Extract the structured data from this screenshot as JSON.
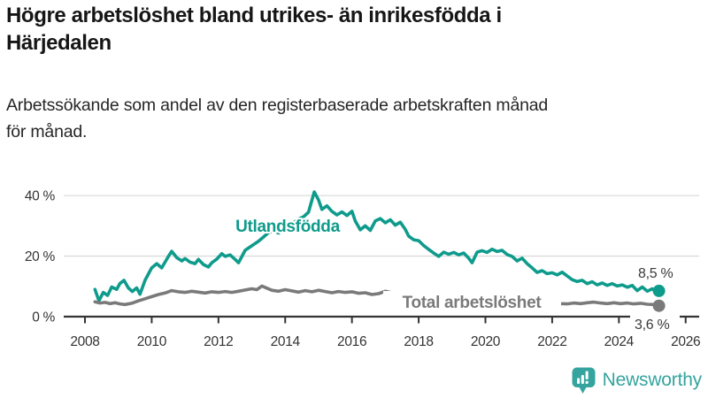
{
  "title": {
    "lines": [
      "Högre arbetslöshet bland utrikes- än inrikesfödda i",
      "Härjedalen"
    ]
  },
  "subtitle": {
    "lines": [
      "Arbetssökande som andel av den registerbaserade arbetskraften månad",
      "för månad."
    ]
  },
  "logo": {
    "text": "Newsworthy",
    "color": "#35a49f"
  },
  "colors": {
    "accent_teal": "#0f9b8c",
    "line_gray": "#7a7a7a",
    "axis": "#333333",
    "gridline": "#dcdcdc"
  },
  "chart_data": {
    "type": "line",
    "title": "Högre arbetslöshet bland utrikes- än inrikesfödda i Härjedalen",
    "subtitle": "Arbetssökande som andel av den registerbaserade arbetskraften månad för månad.",
    "ylabel": "",
    "xlabel": "",
    "ylim": [
      0,
      45
    ],
    "xlim": [
      2007.4,
      2026.4
    ],
    "grid": "horizontal",
    "legend_position": "inline-labels",
    "y_axis": {
      "ticks": [
        {
          "value": 0,
          "label": "0 %"
        },
        {
          "value": 20,
          "label": "20 %"
        },
        {
          "value": 40,
          "label": "40 %"
        }
      ]
    },
    "x_axis": {
      "ticks": [
        {
          "year": 2008,
          "label": "2008"
        },
        {
          "year": 2010,
          "label": "2010"
        },
        {
          "year": 2012,
          "label": "2012"
        },
        {
          "year": 2014,
          "label": "2014"
        },
        {
          "year": 2016,
          "label": "2016"
        },
        {
          "year": 2018,
          "label": "2018"
        },
        {
          "year": 2020,
          "label": "2020"
        },
        {
          "year": 2022,
          "label": "2022"
        },
        {
          "year": 2024,
          "label": "2024"
        },
        {
          "year": 2026,
          "label": "2026"
        }
      ]
    },
    "series": [
      {
        "name": "Utlandsfödda",
        "color": "#0f9b8c",
        "end_label": "8,5 %",
        "end_value": 8.5,
        "points": [
          [
            2008.3,
            9.0
          ],
          [
            2008.42,
            5.2
          ],
          [
            2008.55,
            8.0
          ],
          [
            2008.68,
            7.0
          ],
          [
            2008.8,
            9.8
          ],
          [
            2008.95,
            9.0
          ],
          [
            2009.05,
            11.0
          ],
          [
            2009.17,
            12.0
          ],
          [
            2009.3,
            9.5
          ],
          [
            2009.42,
            8.3
          ],
          [
            2009.55,
            9.5
          ],
          [
            2009.65,
            7.4
          ],
          [
            2009.8,
            12.0
          ],
          [
            2010.0,
            16.1
          ],
          [
            2010.15,
            17.5
          ],
          [
            2010.3,
            16.1
          ],
          [
            2010.5,
            19.9
          ],
          [
            2010.6,
            21.6
          ],
          [
            2010.75,
            19.5
          ],
          [
            2010.9,
            18.4
          ],
          [
            2011.0,
            19.2
          ],
          [
            2011.15,
            18.0
          ],
          [
            2011.3,
            17.5
          ],
          [
            2011.4,
            18.9
          ],
          [
            2011.55,
            17.2
          ],
          [
            2011.7,
            16.4
          ],
          [
            2011.8,
            17.8
          ],
          [
            2011.95,
            19.0
          ],
          [
            2012.1,
            20.8
          ],
          [
            2012.2,
            19.9
          ],
          [
            2012.35,
            20.4
          ],
          [
            2012.5,
            18.9
          ],
          [
            2012.6,
            17.8
          ],
          [
            2012.8,
            21.9
          ],
          [
            2013.0,
            23.4
          ],
          [
            2013.2,
            24.9
          ],
          [
            2013.35,
            26.3
          ],
          [
            2013.5,
            27.8
          ],
          [
            2013.65,
            28.3
          ],
          [
            2013.8,
            27.6
          ],
          [
            2013.95,
            28.8
          ],
          [
            2014.1,
            30.2
          ],
          [
            2014.25,
            31.0
          ],
          [
            2014.4,
            32.2
          ],
          [
            2014.55,
            33.0
          ],
          [
            2014.7,
            34.5
          ],
          [
            2014.87,
            41.2
          ],
          [
            2015.0,
            38.5
          ],
          [
            2015.1,
            35.4
          ],
          [
            2015.25,
            36.6
          ],
          [
            2015.4,
            34.8
          ],
          [
            2015.55,
            33.6
          ],
          [
            2015.7,
            34.6
          ],
          [
            2015.85,
            33.4
          ],
          [
            2016.0,
            34.8
          ],
          [
            2016.1,
            31.6
          ],
          [
            2016.25,
            28.7
          ],
          [
            2016.4,
            30.0
          ],
          [
            2016.55,
            28.5
          ],
          [
            2016.7,
            31.6
          ],
          [
            2016.85,
            32.4
          ],
          [
            2017.0,
            31.0
          ],
          [
            2017.15,
            32.0
          ],
          [
            2017.3,
            30.2
          ],
          [
            2017.45,
            31.2
          ],
          [
            2017.6,
            28.8
          ],
          [
            2017.7,
            26.6
          ],
          [
            2017.85,
            25.4
          ],
          [
            2018.0,
            25.1
          ],
          [
            2018.15,
            23.5
          ],
          [
            2018.3,
            22.2
          ],
          [
            2018.45,
            21.0
          ],
          [
            2018.6,
            19.9
          ],
          [
            2018.75,
            21.3
          ],
          [
            2018.9,
            20.6
          ],
          [
            2019.05,
            21.2
          ],
          [
            2019.2,
            20.4
          ],
          [
            2019.35,
            21.0
          ],
          [
            2019.5,
            19.3
          ],
          [
            2019.6,
            17.8
          ],
          [
            2019.75,
            21.3
          ],
          [
            2019.9,
            21.8
          ],
          [
            2020.05,
            21.2
          ],
          [
            2020.2,
            22.3
          ],
          [
            2020.35,
            21.5
          ],
          [
            2020.5,
            21.9
          ],
          [
            2020.65,
            20.5
          ],
          [
            2020.8,
            19.9
          ],
          [
            2020.95,
            18.4
          ],
          [
            2021.1,
            19.3
          ],
          [
            2021.25,
            17.5
          ],
          [
            2021.4,
            16.1
          ],
          [
            2021.55,
            14.6
          ],
          [
            2021.7,
            15.2
          ],
          [
            2021.85,
            14.2
          ],
          [
            2022.0,
            14.5
          ],
          [
            2022.15,
            13.8
          ],
          [
            2022.3,
            14.7
          ],
          [
            2022.45,
            13.4
          ],
          [
            2022.6,
            12.2
          ],
          [
            2022.75,
            11.6
          ],
          [
            2022.9,
            12.0
          ],
          [
            2023.05,
            10.9
          ],
          [
            2023.2,
            11.5
          ],
          [
            2023.35,
            10.5
          ],
          [
            2023.5,
            11.1
          ],
          [
            2023.65,
            10.3
          ],
          [
            2023.8,
            10.9
          ],
          [
            2023.95,
            10.1
          ],
          [
            2024.1,
            10.5
          ],
          [
            2024.25,
            9.7
          ],
          [
            2024.4,
            10.3
          ],
          [
            2024.55,
            8.6
          ],
          [
            2024.7,
            9.8
          ],
          [
            2024.85,
            8.4
          ],
          [
            2025.0,
            9.2
          ],
          [
            2025.1,
            8.3
          ],
          [
            2025.2,
            8.5
          ]
        ]
      },
      {
        "name": "Total arbetslöshet",
        "color": "#7a7a7a",
        "end_label": "3,6 %",
        "end_value": 3.6,
        "points": [
          [
            2008.3,
            4.9
          ],
          [
            2008.45,
            4.5
          ],
          [
            2008.6,
            4.7
          ],
          [
            2008.75,
            4.3
          ],
          [
            2008.9,
            4.6
          ],
          [
            2009.05,
            4.2
          ],
          [
            2009.2,
            4.0
          ],
          [
            2009.4,
            4.4
          ],
          [
            2009.6,
            5.2
          ],
          [
            2009.8,
            5.9
          ],
          [
            2010.0,
            6.6
          ],
          [
            2010.2,
            7.3
          ],
          [
            2010.4,
            7.8
          ],
          [
            2010.6,
            8.6
          ],
          [
            2010.8,
            8.2
          ],
          [
            2011.0,
            8.0
          ],
          [
            2011.2,
            8.4
          ],
          [
            2011.4,
            8.1
          ],
          [
            2011.6,
            7.8
          ],
          [
            2011.8,
            8.2
          ],
          [
            2012.0,
            8.0
          ],
          [
            2012.2,
            8.3
          ],
          [
            2012.4,
            8.0
          ],
          [
            2012.6,
            8.4
          ],
          [
            2012.8,
            8.8
          ],
          [
            2013.0,
            9.2
          ],
          [
            2013.15,
            8.9
          ],
          [
            2013.3,
            10.1
          ],
          [
            2013.45,
            9.4
          ],
          [
            2013.6,
            8.7
          ],
          [
            2013.8,
            8.4
          ],
          [
            2014.0,
            8.9
          ],
          [
            2014.2,
            8.5
          ],
          [
            2014.4,
            8.1
          ],
          [
            2014.6,
            8.6
          ],
          [
            2014.8,
            8.2
          ],
          [
            2015.0,
            8.7
          ],
          [
            2015.2,
            8.3
          ],
          [
            2015.4,
            7.9
          ],
          [
            2015.6,
            8.3
          ],
          [
            2015.8,
            8.0
          ],
          [
            2016.0,
            8.2
          ],
          [
            2016.2,
            7.7
          ],
          [
            2016.4,
            7.9
          ],
          [
            2016.6,
            7.3
          ],
          [
            2016.8,
            7.6
          ],
          [
            2017.0,
            8.4
          ],
          [
            2017.2,
            7.9
          ],
          [
            2017.5,
            7.3
          ],
          [
            2017.8,
            6.9
          ],
          [
            2018.1,
            6.5
          ],
          [
            2018.5,
            6.1
          ],
          [
            2019.0,
            5.6
          ],
          [
            2019.5,
            5.3
          ],
          [
            2020.0,
            5.6
          ],
          [
            2020.4,
            6.4
          ],
          [
            2020.8,
            6.1
          ],
          [
            2021.2,
            5.5
          ],
          [
            2021.6,
            4.9
          ],
          [
            2022.0,
            4.5
          ],
          [
            2022.25,
            4.3
          ],
          [
            2022.45,
            4.2
          ],
          [
            2022.65,
            4.5
          ],
          [
            2022.85,
            4.3
          ],
          [
            2023.05,
            4.6
          ],
          [
            2023.25,
            4.8
          ],
          [
            2023.45,
            4.5
          ],
          [
            2023.65,
            4.3
          ],
          [
            2023.85,
            4.6
          ],
          [
            2024.05,
            4.3
          ],
          [
            2024.25,
            4.5
          ],
          [
            2024.45,
            4.2
          ],
          [
            2024.65,
            4.4
          ],
          [
            2024.85,
            4.1
          ],
          [
            2025.05,
            4.0
          ],
          [
            2025.2,
            3.6
          ]
        ]
      }
    ]
  }
}
